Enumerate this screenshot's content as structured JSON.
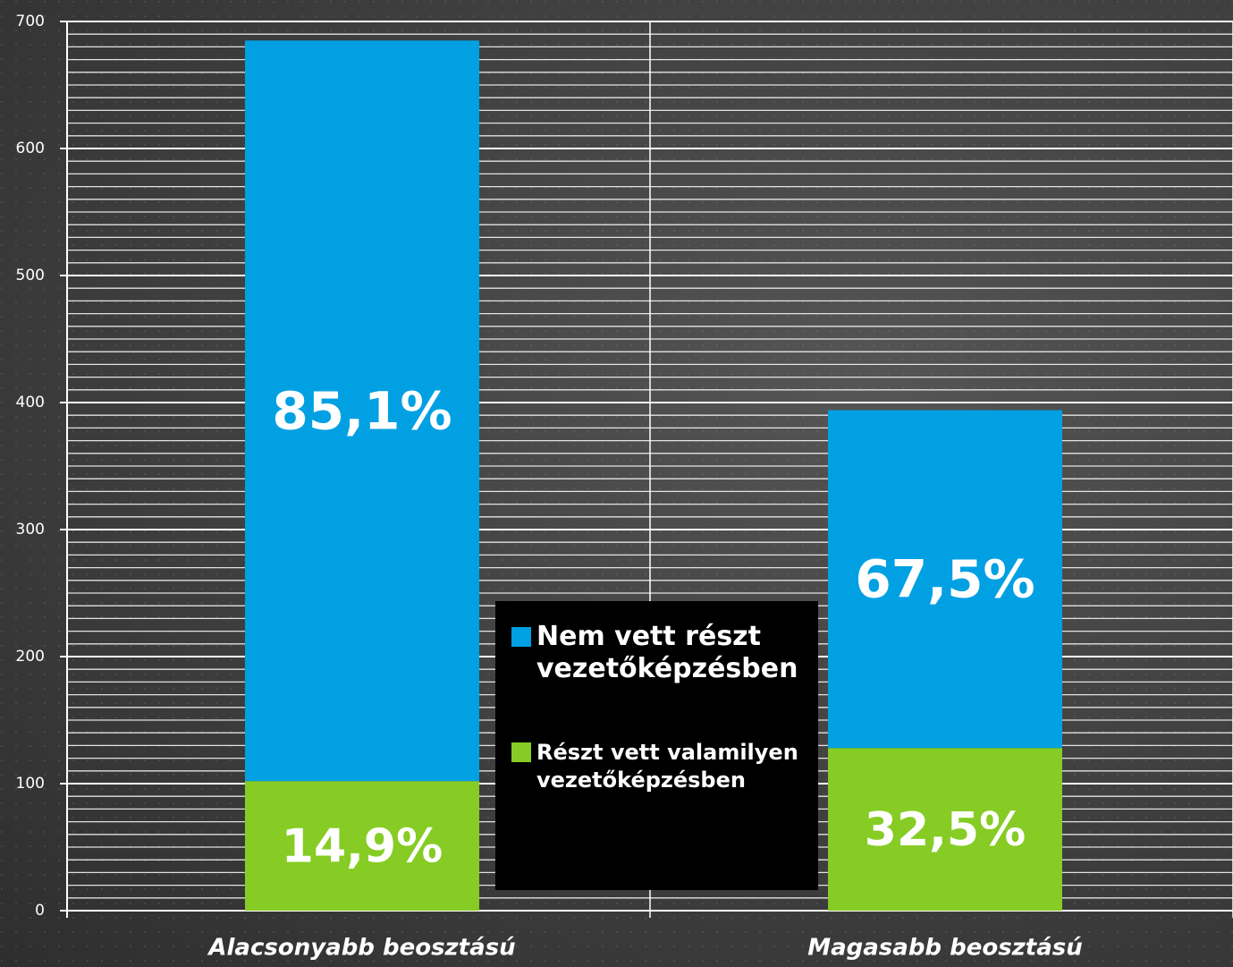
{
  "chart_data": {
    "type": "stacked_bar",
    "categories": [
      "Alacsonyabb beosztású",
      "Magasabb beosztású"
    ],
    "series": [
      {
        "name": "Részt vett valamilyen vezetőképzésben",
        "color": "#86cc24",
        "values": [
          102,
          128
        ],
        "data_labels": [
          "14,9%",
          "32,5%"
        ]
      },
      {
        "name": "Nem vett részt vezetőképzésben",
        "color": "#00a0e3",
        "values": [
          583,
          266
        ],
        "data_labels": [
          "85,1%",
          "67,5%"
        ]
      }
    ],
    "ylim": [
      0,
      700
    ],
    "yticks": [
      0,
      100,
      200,
      300,
      400,
      500,
      600,
      700
    ],
    "grid": true,
    "minor_grid_step": 10,
    "legend": "center"
  }
}
